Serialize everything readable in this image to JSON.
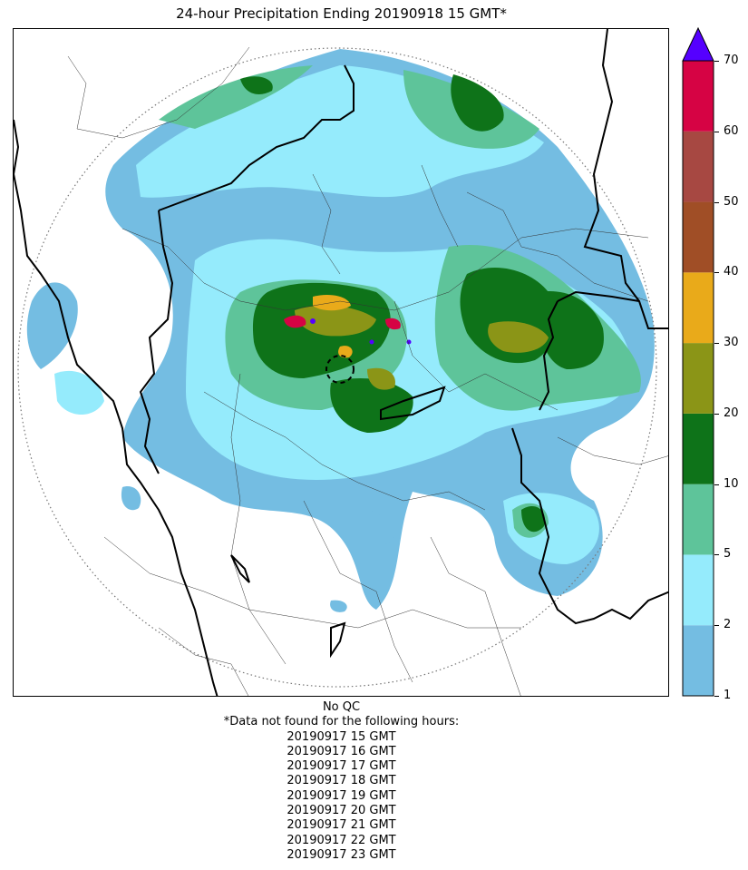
{
  "title": "24-hour Precipitation Ending 20190918 15 GMT*",
  "colorbar": {
    "ticks": [
      "1",
      "2",
      "5",
      "10",
      "20",
      "30",
      "40",
      "50",
      "60",
      "70"
    ],
    "bins": [
      {
        "lower": 1,
        "upper": 2,
        "color": "#74bde2"
      },
      {
        "lower": 2,
        "upper": 5,
        "color": "#95ebfc"
      },
      {
        "lower": 5,
        "upper": 10,
        "color": "#5ec49a"
      },
      {
        "lower": 10,
        "upper": 20,
        "color": "#0e7319"
      },
      {
        "lower": 20,
        "upper": 30,
        "color": "#8b9517"
      },
      {
        "lower": 30,
        "upper": 40,
        "color": "#e9aa1a"
      },
      {
        "lower": 40,
        "upper": 50,
        "color": "#a04e26"
      },
      {
        "lower": 50,
        "upper": 60,
        "color": "#a74842"
      },
      {
        "lower": 60,
        "upper": 70,
        "color": "#d60344"
      }
    ],
    "over_color": "#5500ff"
  },
  "footer": {
    "qc_note": "No QC",
    "missing_header": "*Data not found for the following hours:",
    "missing_hours": [
      "20190917 15 GMT",
      "20190917 16 GMT",
      "20190917 17 GMT",
      "20190917 18 GMT",
      "20190917 19 GMT",
      "20190917 20 GMT",
      "20190917 21 GMT",
      "20190917 22 GMT",
      "20190917 23 GMT"
    ]
  }
}
